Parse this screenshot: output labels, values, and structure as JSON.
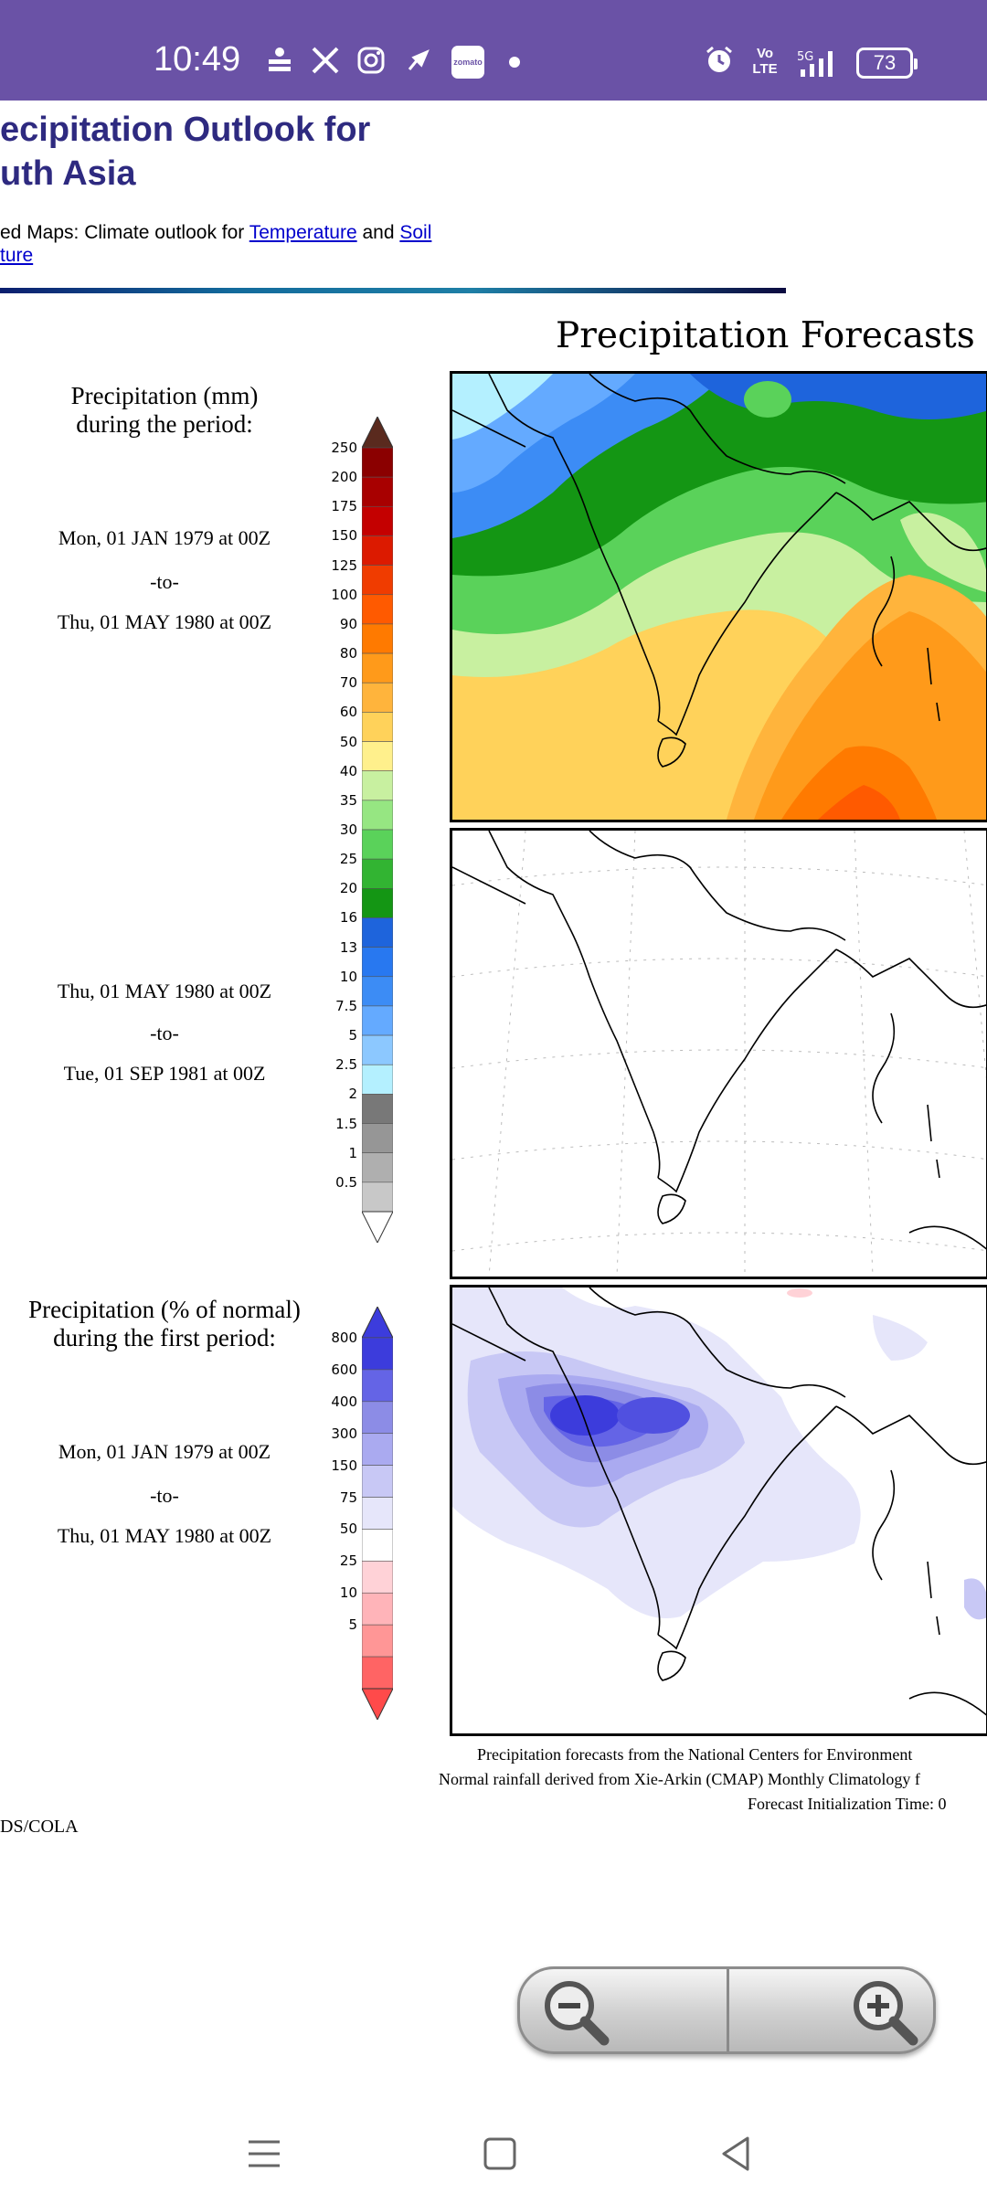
{
  "status_bar": {
    "time": "10:49",
    "battery": "73",
    "network_top": "Vo",
    "network_bottom": "LTE",
    "five_g": "5G",
    "badge": "zomato"
  },
  "page": {
    "title": "ecipitation Outlook for\nuth Asia",
    "related_prefix": "ed Maps: Climate outlook for ",
    "related_link1": "Temperature",
    "related_and": " and ",
    "related_link2": "Soil",
    "related_link2_cont": "ture"
  },
  "figure": {
    "title": "Precipitation Forecasts",
    "panel1": {
      "heading_line1": "Precipitation (mm)",
      "heading_line2": "during the period:",
      "from": "Mon, 01 JAN 1979 at 00Z",
      "to_word": "-to-",
      "until": "Thu, 01 MAY 1980 at 00Z"
    },
    "panel2": {
      "from": "Thu, 01 MAY 1980 at 00Z",
      "to_word": "-to-",
      "until": "Tue, 01 SEP 1981 at 00Z"
    },
    "panel3": {
      "heading_line1": "Precipitation (% of normal)",
      "heading_line2": "during the first period:",
      "from": "Mon, 01 JAN 1979 at 00Z",
      "to_word": "-to-",
      "until": "Thu, 01 MAY 1980 at 00Z"
    },
    "mm_scale": [
      "250",
      "200",
      "175",
      "150",
      "125",
      "100",
      "90",
      "80",
      "70",
      "60",
      "50",
      "40",
      "35",
      "30",
      "25",
      "20",
      "16",
      "13",
      "10",
      "7.5",
      "5",
      "2.5",
      "2",
      "1.5",
      "1",
      "0.5"
    ],
    "mm_colors": [
      "#8b0000",
      "#a80000",
      "#c40000",
      "#dc1a00",
      "#f03c00",
      "#ff5a00",
      "#ff7a00",
      "#ff9a1a",
      "#ffb43c",
      "#ffd25a",
      "#fff08c",
      "#c8f0a0",
      "#96e682",
      "#5ad25a",
      "#32b432",
      "#149614",
      "#1e64dc",
      "#2878f0",
      "#3c8cf5",
      "#64aaff",
      "#8cc8ff",
      "#b4f0ff",
      "#787878",
      "#969696",
      "#afafaf",
      "#c8c8c8"
    ],
    "pct_scale": [
      "800",
      "600",
      "400",
      "300",
      "150",
      "75",
      "50",
      "25",
      "10",
      "5"
    ],
    "pct_colors": [
      "#3c3cdc",
      "#6464e6",
      "#8c8ce6",
      "#aaaaf0",
      "#c8c8f5",
      "#e6e6fa",
      "#ffffff",
      "#ffd2d7",
      "#ffb4b9",
      "#ff9696",
      "#ff6464"
    ],
    "caption_line1": "Precipitation forecasts from the National Centers for Environment",
    "caption_line2": "Normal rainfall derived from Xie-Arkin (CMAP) Monthly Climatology f",
    "caption_line3": "Forecast Initialization Time: 0",
    "credits": "DS/COLA"
  },
  "icons": {
    "zoom_out": "zoom-out-icon",
    "zoom_in": "zoom-in-icon"
  }
}
